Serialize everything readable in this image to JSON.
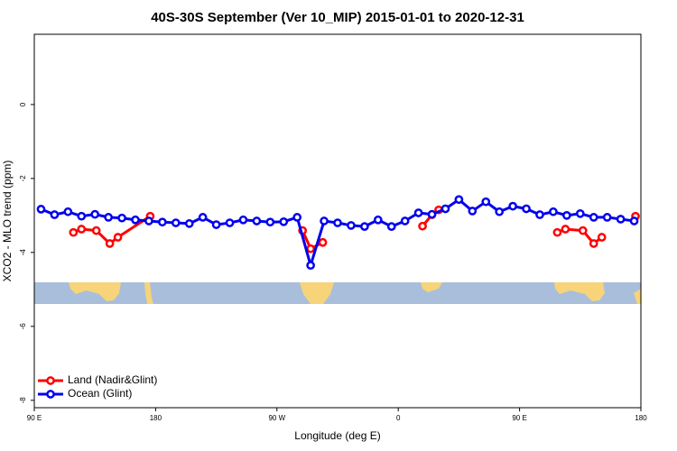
{
  "chart_data": {
    "type": "line",
    "title": "40S-30S September (Ver 10_MIP)   2015-01-01 to 2020-12-31",
    "x_label": "Longitude (deg E)",
    "y_label": "XCO2 - MLO trend (ppm)",
    "xlim": [
      90,
      540
    ],
    "ylim": [
      -8.2,
      1.9
    ],
    "xticks": [
      {
        "value": 90,
        "label": "90 E"
      },
      180,
      {
        "value": 270,
        "label": "90 W"
      },
      {
        "value": 360,
        "label": "0"
      },
      {
        "value": 450,
        "label": "90 E"
      },
      {
        "value": 540,
        "label": "180"
      }
    ],
    "yticks": [
      -8,
      -6,
      -4,
      -2,
      0
    ],
    "legend": "bottom-left",
    "series": [
      {
        "name": "Land (Nadir&Glint)",
        "color": "#ff0000",
        "x": [
          119,
          125,
          136,
          146,
          152,
          176,
          null,
          289,
          295,
          304,
          null,
          378,
          385,
          390,
          null,
          478,
          484,
          497,
          505,
          511,
          null,
          536
        ],
        "values": [
          -3.46,
          -3.37,
          -3.41,
          -3.76,
          -3.59,
          -3.02,
          null,
          -3.41,
          -3.9,
          -3.73,
          null,
          -3.29,
          -2.98,
          -2.85,
          null,
          -3.46,
          -3.37,
          -3.41,
          -3.76,
          -3.59,
          null,
          -3.02
        ]
      },
      {
        "name": "Ocean (Glint)",
        "color": "#0000ee",
        "x": [
          95,
          105,
          115,
          125,
          135,
          145,
          155,
          165,
          175,
          185,
          195,
          205,
          215,
          225,
          235,
          245,
          255,
          265,
          275,
          285,
          295,
          305,
          315,
          325,
          335,
          345,
          355,
          365,
          375,
          385,
          395,
          405,
          415,
          425,
          435,
          445,
          455,
          465,
          475,
          485,
          495,
          505,
          515,
          525,
          535
        ],
        "values": [
          -2.83,
          -2.98,
          -2.9,
          -3.02,
          -2.97,
          -3.05,
          -3.07,
          -3.12,
          -3.15,
          -3.18,
          -3.2,
          -3.22,
          -3.05,
          -3.25,
          -3.2,
          -3.12,
          -3.15,
          -3.18,
          -3.17,
          -3.05,
          -4.35,
          -3.15,
          -3.2,
          -3.27,
          -3.3,
          -3.12,
          -3.3,
          -3.15,
          -2.93,
          -2.97,
          -2.82,
          -2.57,
          -2.88,
          -2.63,
          -2.9,
          -2.75,
          -2.82,
          -2.98,
          -2.9,
          -3.0,
          -2.95,
          -3.05,
          -3.05,
          -3.1,
          -3.15
        ]
      }
    ]
  }
}
